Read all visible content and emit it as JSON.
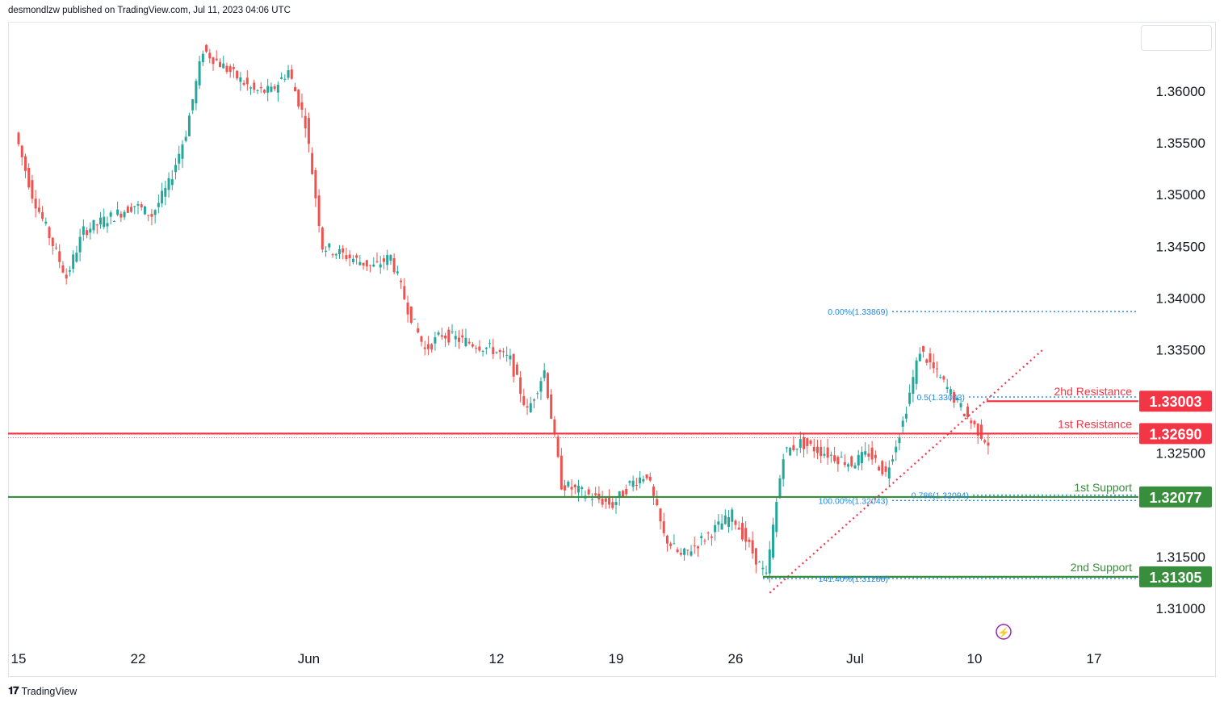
{
  "header": {
    "published_text": "desmondlzw published on TradingView.com, Jul 11, 2023 04:06 UTC"
  },
  "footer": {
    "brand": "TradingView",
    "logo": "tradingview-logo-icon"
  },
  "colors": {
    "up": "#26a69a",
    "down": "#ef5350",
    "resistance": "#f23645",
    "support": "#388e3c",
    "fib": "#1e88e5",
    "trend": "#f23645",
    "axis_text": "#131722",
    "grid_border": "#e0e3eb"
  },
  "chart_data": {
    "type": "candlestick",
    "y_axis": {
      "range": [
        1.3048,
        1.3668
      ],
      "ticks": [
        "1.31000",
        "1.31500",
        "1.32500",
        "1.33500",
        "1.34000",
        "1.34500",
        "1.35000",
        "1.35500",
        "1.36000"
      ]
    },
    "x_axis": {
      "ticks": [
        {
          "label": "15",
          "date": "2023-05-15"
        },
        {
          "label": "22",
          "date": "2023-05-22"
        },
        {
          "label": "Jun",
          "date": "2023-06-01"
        },
        {
          "label": "12",
          "date": "2023-06-12"
        },
        {
          "label": "19",
          "date": "2023-06-19"
        },
        {
          "label": "26",
          "date": "2023-06-26"
        },
        {
          "label": "Jul",
          "date": "2023-07-03"
        },
        {
          "label": "10",
          "date": "2023-07-10"
        },
        {
          "label": "17",
          "date": "2023-07-17"
        }
      ]
    },
    "close_path": [
      [
        "2023-05-15",
        1.356
      ],
      [
        "2023-05-16",
        1.35
      ],
      [
        "2023-05-17",
        1.346
      ],
      [
        "2023-05-18",
        1.342
      ],
      [
        "2023-05-19",
        1.3465
      ],
      [
        "2023-05-22",
        1.349
      ],
      [
        "2023-05-23",
        1.348
      ],
      [
        "2023-05-24",
        1.351
      ],
      [
        "2023-05-25",
        1.356
      ],
      [
        "2023-05-26",
        1.364
      ],
      [
        "2023-05-29",
        1.36
      ],
      [
        "2023-05-30",
        1.36
      ],
      [
        "2023-05-31",
        1.362
      ],
      [
        "2023-06-01",
        1.357
      ],
      [
        "2023-06-02",
        1.345
      ],
      [
        "2023-06-05",
        1.343
      ],
      [
        "2023-06-06",
        1.344
      ],
      [
        "2023-06-07",
        1.339
      ],
      [
        "2023-06-08",
        1.335
      ],
      [
        "2023-06-09",
        1.3365
      ],
      [
        "2023-06-12",
        1.335
      ],
      [
        "2023-06-13",
        1.334
      ],
      [
        "2023-06-14",
        1.329
      ],
      [
        "2023-06-15",
        1.333
      ],
      [
        "2023-06-16",
        1.322
      ],
      [
        "2023-06-19",
        1.32
      ],
      [
        "2023-06-20",
        1.322
      ],
      [
        "2023-06-21",
        1.323
      ],
      [
        "2023-06-22",
        1.317
      ],
      [
        "2023-06-23",
        1.315
      ],
      [
        "2023-06-26",
        1.319
      ],
      [
        "2023-06-27",
        1.316
      ],
      [
        "2023-06-28",
        1.313
      ],
      [
        "2023-06-29",
        1.325
      ],
      [
        "2023-06-30",
        1.326
      ],
      [
        "2023-07-03",
        1.324
      ],
      [
        "2023-07-04",
        1.325
      ],
      [
        "2023-07-05",
        1.323
      ],
      [
        "2023-07-06",
        1.328
      ],
      [
        "2023-07-07",
        1.335
      ],
      [
        "2023-07-10",
        1.328
      ],
      [
        "2023-07-11",
        1.326
      ]
    ],
    "horizontal_levels": [
      {
        "name": "2hd Resistance",
        "value": "1.33003",
        "price": 1.33003,
        "kind": "resistance"
      },
      {
        "name": "1st Resistance",
        "value": "1.32690",
        "price": 1.3269,
        "kind": "resistance"
      },
      {
        "name": "1st Support",
        "value": "1.32077",
        "price": 1.32077,
        "kind": "support"
      },
      {
        "name": "2nd Support",
        "value": "1.31305",
        "price": 1.31305,
        "kind": "support"
      }
    ],
    "fib_labels": [
      {
        "text": "0.00%(1.33869)",
        "price": 1.33869
      },
      {
        "text": "0.5(1.33043)",
        "price": 1.33043
      },
      {
        "text": "100.00%(1.32043)",
        "price": 1.32043
      },
      {
        "text": "0.786(1.32094)",
        "price": 1.32094
      },
      {
        "text": "141.40%(1.31288)",
        "price": 1.31288
      }
    ],
    "trendline": {
      "style": "dotted",
      "from": [
        "2023-06-28",
        1.3115
      ],
      "to": [
        "2023-07-14",
        1.335
      ]
    },
    "grid": false,
    "legend": "none"
  }
}
